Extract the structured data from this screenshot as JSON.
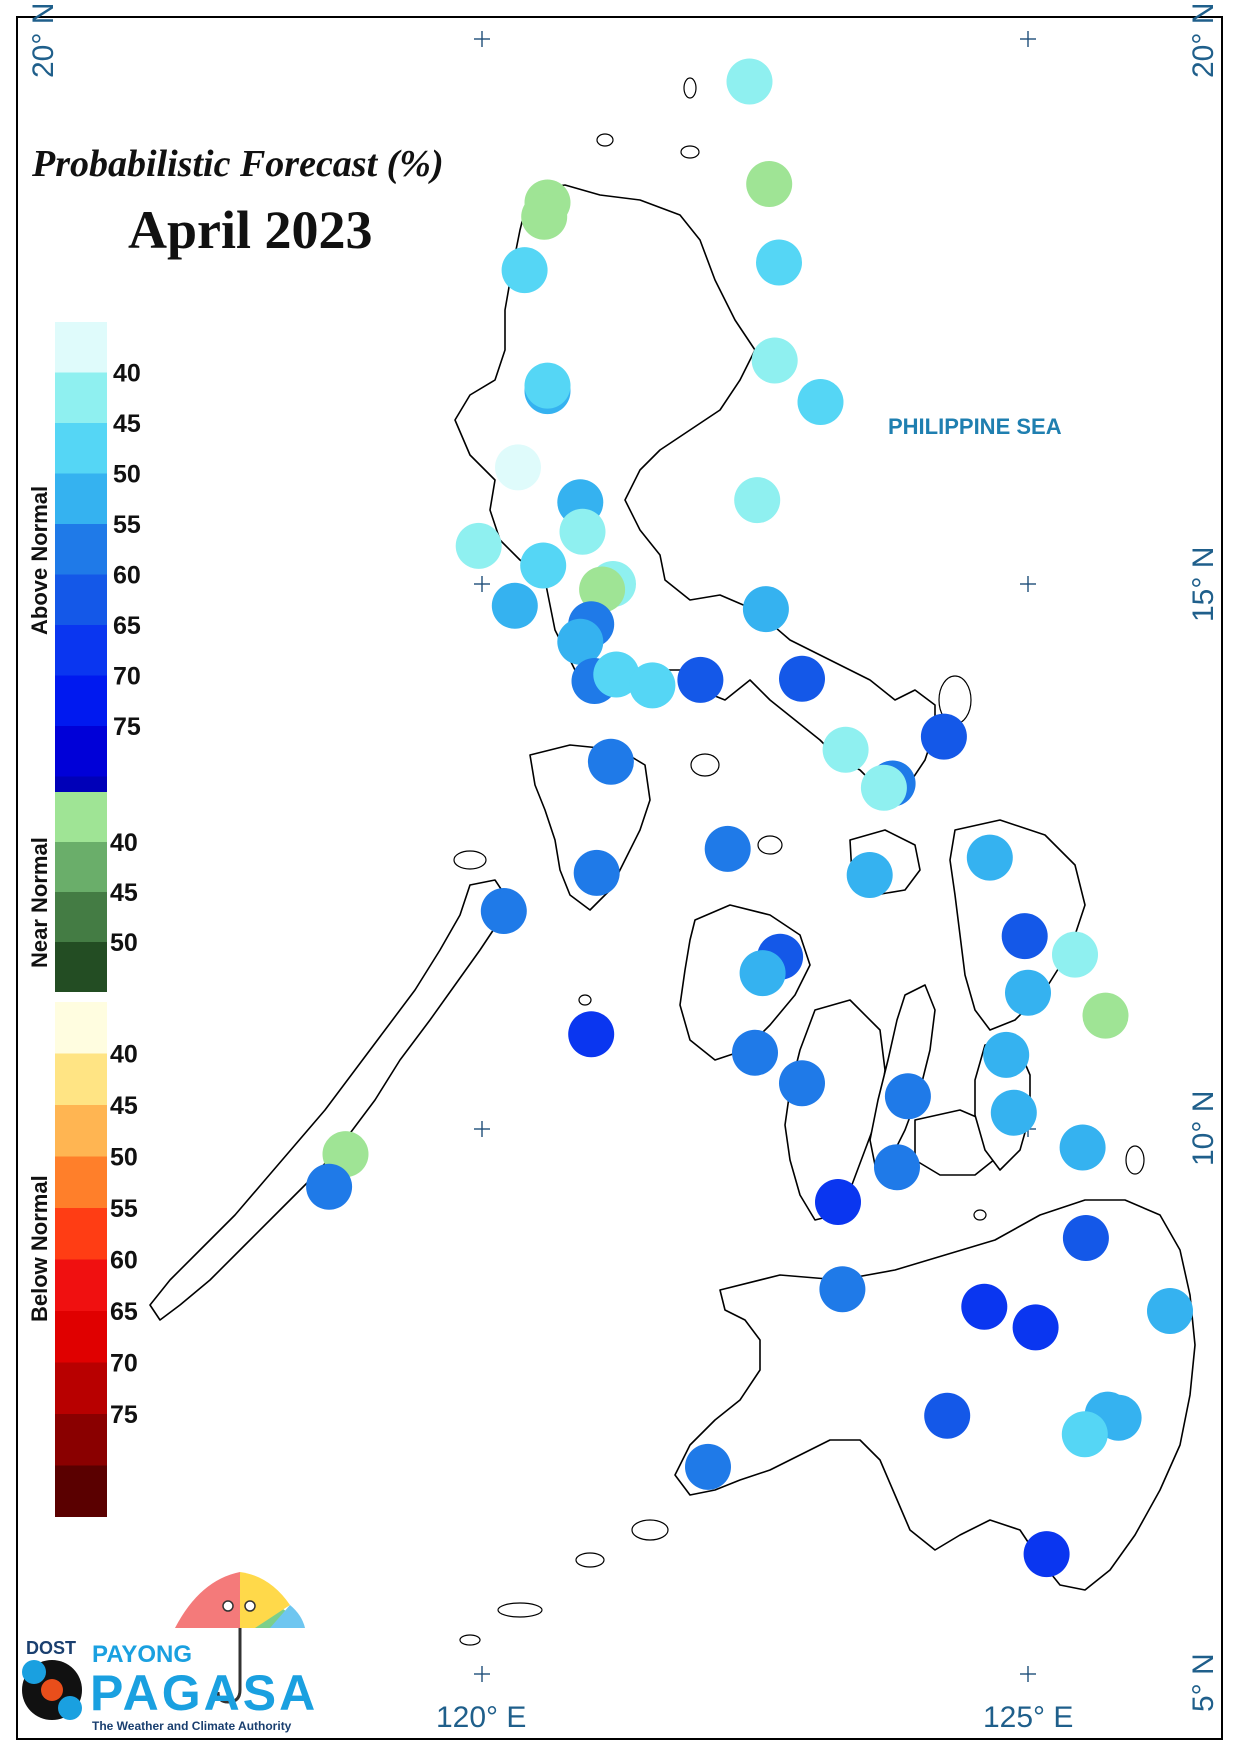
{
  "title": {
    "line1": "Probabilistic Forecast (%)",
    "line2": "April 2023"
  },
  "sea_label": "PHILIPPINE SEA",
  "coordinate_labels": {
    "lat_20_left": "20° N",
    "lat_20_right": "20° N",
    "lat_15": "15° N",
    "lat_10": "10° N",
    "lat_5": "5° N",
    "lon_120": "120° E",
    "lon_125": "125° E"
  },
  "legend": {
    "above_normal": {
      "label": "Above Normal",
      "colors": [
        "#dffbfb",
        "#8ff0f0",
        "#55d6f5",
        "#35b2f0",
        "#1f7ae8",
        "#1458e8",
        "#0a36f0",
        "#0019f0",
        "#0000d8",
        "#0000b8"
      ],
      "ticks": [
        "40",
        "45",
        "50",
        "55",
        "60",
        "65",
        "70",
        "75"
      ]
    },
    "near_normal": {
      "label": "Near Normal",
      "colors": [
        "#9fe495",
        "#6aae6a",
        "#447c44",
        "#234d23"
      ],
      "ticks": [
        "40",
        "45",
        "50"
      ]
    },
    "below_normal": {
      "label": "Below Normal",
      "colors": [
        "#fffde0",
        "#ffe484",
        "#ffb552",
        "#ff7f2a",
        "#ff3d14",
        "#f01010",
        "#e00000",
        "#b80000",
        "#8a0000",
        "#5a0000"
      ],
      "ticks": [
        "40",
        "45",
        "50",
        "55",
        "60",
        "65",
        "70",
        "75"
      ]
    }
  },
  "logo": {
    "dost": "DOST",
    "payong": "PAYONG",
    "pagasa": "PAGASA",
    "tagline": "The Weather and Climate Authority"
  },
  "stations": [
    {
      "lon": 122.45,
      "lat": 19.61,
      "cat": "above",
      "color": "#8ff0f0"
    },
    {
      "lon": 122.63,
      "lat": 18.67,
      "cat": "near",
      "color": "#9fe495"
    },
    {
      "lon": 120.6,
      "lat": 18.5,
      "cat": "near",
      "color": "#9fe495"
    },
    {
      "lon": 120.57,
      "lat": 18.37,
      "cat": "near",
      "color": "#9fe495"
    },
    {
      "lon": 120.39,
      "lat": 17.88,
      "cat": "above",
      "color": "#55d6f5"
    },
    {
      "lon": 122.72,
      "lat": 17.95,
      "cat": "above",
      "color": "#55d6f5"
    },
    {
      "lon": 122.68,
      "lat": 17.05,
      "cat": "above",
      "color": "#8ff0f0"
    },
    {
      "lon": 120.6,
      "lat": 16.77,
      "cat": "above",
      "color": "#35b2f0"
    },
    {
      "lon": 120.6,
      "lat": 16.82,
      "cat": "above",
      "color": "#55d6f5"
    },
    {
      "lon": 123.1,
      "lat": 16.67,
      "cat": "above",
      "color": "#55d6f5"
    },
    {
      "lon": 120.33,
      "lat": 16.07,
      "cat": "above",
      "color": "#dffbfb"
    },
    {
      "lon": 120.9,
      "lat": 15.75,
      "cat": "above",
      "color": "#35b2f0"
    },
    {
      "lon": 122.52,
      "lat": 15.77,
      "cat": "above",
      "color": "#8ff0f0"
    },
    {
      "lon": 120.92,
      "lat": 15.48,
      "cat": "above",
      "color": "#8ff0f0"
    },
    {
      "lon": 119.97,
      "lat": 15.35,
      "cat": "above",
      "color": "#8ff0f0"
    },
    {
      "lon": 120.56,
      "lat": 15.17,
      "cat": "above",
      "color": "#55d6f5"
    },
    {
      "lon": 121.2,
      "lat": 15.0,
      "cat": "above",
      "color": "#8ff0f0"
    },
    {
      "lon": 121.1,
      "lat": 14.95,
      "cat": "near",
      "color": "#9fe495"
    },
    {
      "lon": 120.3,
      "lat": 14.8,
      "cat": "above",
      "color": "#35b2f0"
    },
    {
      "lon": 122.6,
      "lat": 14.77,
      "cat": "above",
      "color": "#35b2f0"
    },
    {
      "lon": 121.0,
      "lat": 14.63,
      "cat": "above",
      "color": "#1f7ae8"
    },
    {
      "lon": 120.9,
      "lat": 14.47,
      "cat": "above",
      "color": "#35b2f0"
    },
    {
      "lon": 121.03,
      "lat": 14.11,
      "cat": "above",
      "color": "#1f7ae8"
    },
    {
      "lon": 121.23,
      "lat": 14.17,
      "cat": "above",
      "color": "#55d6f5"
    },
    {
      "lon": 121.56,
      "lat": 14.07,
      "cat": "above",
      "color": "#55d6f5"
    },
    {
      "lon": 122.0,
      "lat": 14.12,
      "cat": "above",
      "color": "#1458e8"
    },
    {
      "lon": 122.93,
      "lat": 14.13,
      "cat": "above",
      "color": "#1458e8"
    },
    {
      "lon": 124.23,
      "lat": 13.6,
      "cat": "above",
      "color": "#1458e8"
    },
    {
      "lon": 123.33,
      "lat": 13.48,
      "cat": "above",
      "color": "#8ff0f0"
    },
    {
      "lon": 121.18,
      "lat": 13.37,
      "cat": "above",
      "color": "#1f7ae8"
    },
    {
      "lon": 123.76,
      "lat": 13.17,
      "cat": "above",
      "color": "#1f7ae8"
    },
    {
      "lon": 123.68,
      "lat": 13.13,
      "cat": "above",
      "color": "#8ff0f0"
    },
    {
      "lon": 122.25,
      "lat": 12.57,
      "cat": "above",
      "color": "#1f7ae8"
    },
    {
      "lon": 124.65,
      "lat": 12.49,
      "cat": "above",
      "color": "#35b2f0"
    },
    {
      "lon": 121.05,
      "lat": 12.35,
      "cat": "above",
      "color": "#1f7ae8"
    },
    {
      "lon": 123.55,
      "lat": 12.33,
      "cat": "above",
      "color": "#35b2f0"
    },
    {
      "lon": 120.2,
      "lat": 12.0,
      "cat": "above",
      "color": "#1f7ae8"
    },
    {
      "lon": 124.97,
      "lat": 11.77,
      "cat": "above",
      "color": "#1458e8"
    },
    {
      "lon": 125.43,
      "lat": 11.6,
      "cat": "above",
      "color": "#8ff0f0"
    },
    {
      "lon": 122.73,
      "lat": 11.58,
      "cat": "above",
      "color": "#1458e8"
    },
    {
      "lon": 122.57,
      "lat": 11.43,
      "cat": "above",
      "color": "#35b2f0"
    },
    {
      "lon": 125.0,
      "lat": 11.25,
      "cat": "above",
      "color": "#35b2f0"
    },
    {
      "lon": 125.71,
      "lat": 11.04,
      "cat": "near",
      "color": "#9fe495"
    },
    {
      "lon": 121.0,
      "lat": 10.87,
      "cat": "above",
      "color": "#0a36f0"
    },
    {
      "lon": 122.5,
      "lat": 10.7,
      "cat": "above",
      "color": "#1f7ae8"
    },
    {
      "lon": 124.8,
      "lat": 10.68,
      "cat": "above",
      "color": "#35b2f0"
    },
    {
      "lon": 122.93,
      "lat": 10.42,
      "cat": "above",
      "color": "#1f7ae8"
    },
    {
      "lon": 123.9,
      "lat": 10.3,
      "cat": "above",
      "color": "#1f7ae8"
    },
    {
      "lon": 124.87,
      "lat": 10.15,
      "cat": "above",
      "color": "#35b2f0"
    },
    {
      "lon": 125.5,
      "lat": 9.83,
      "cat": "above",
      "color": "#35b2f0"
    },
    {
      "lon": 118.75,
      "lat": 9.77,
      "cat": "near",
      "color": "#9fe495"
    },
    {
      "lon": 123.8,
      "lat": 9.65,
      "cat": "above",
      "color": "#1f7ae8"
    },
    {
      "lon": 118.6,
      "lat": 9.47,
      "cat": "above",
      "color": "#1f7ae8"
    },
    {
      "lon": 123.26,
      "lat": 9.33,
      "cat": "above",
      "color": "#0a36f0"
    },
    {
      "lon": 125.53,
      "lat": 9.0,
      "cat": "above",
      "color": "#1458e8"
    },
    {
      "lon": 123.3,
      "lat": 8.53,
      "cat": "above",
      "color": "#1f7ae8"
    },
    {
      "lon": 124.6,
      "lat": 8.37,
      "cat": "above",
      "color": "#0a36f0"
    },
    {
      "lon": 126.3,
      "lat": 8.33,
      "cat": "above",
      "color": "#35b2f0"
    },
    {
      "lon": 125.07,
      "lat": 8.18,
      "cat": "above",
      "color": "#0a36f0"
    },
    {
      "lon": 124.26,
      "lat": 7.37,
      "cat": "above",
      "color": "#1458e8"
    },
    {
      "lon": 125.73,
      "lat": 7.38,
      "cat": "above",
      "color": "#35b2f0"
    },
    {
      "lon": 125.83,
      "lat": 7.35,
      "cat": "above",
      "color": "#35b2f0"
    },
    {
      "lon": 125.52,
      "lat": 7.2,
      "cat": "above",
      "color": "#55d6f5"
    },
    {
      "lon": 122.07,
      "lat": 6.9,
      "cat": "above",
      "color": "#1f7ae8"
    },
    {
      "lon": 125.17,
      "lat": 6.1,
      "cat": "above",
      "color": "#0a36f0"
    }
  ]
}
